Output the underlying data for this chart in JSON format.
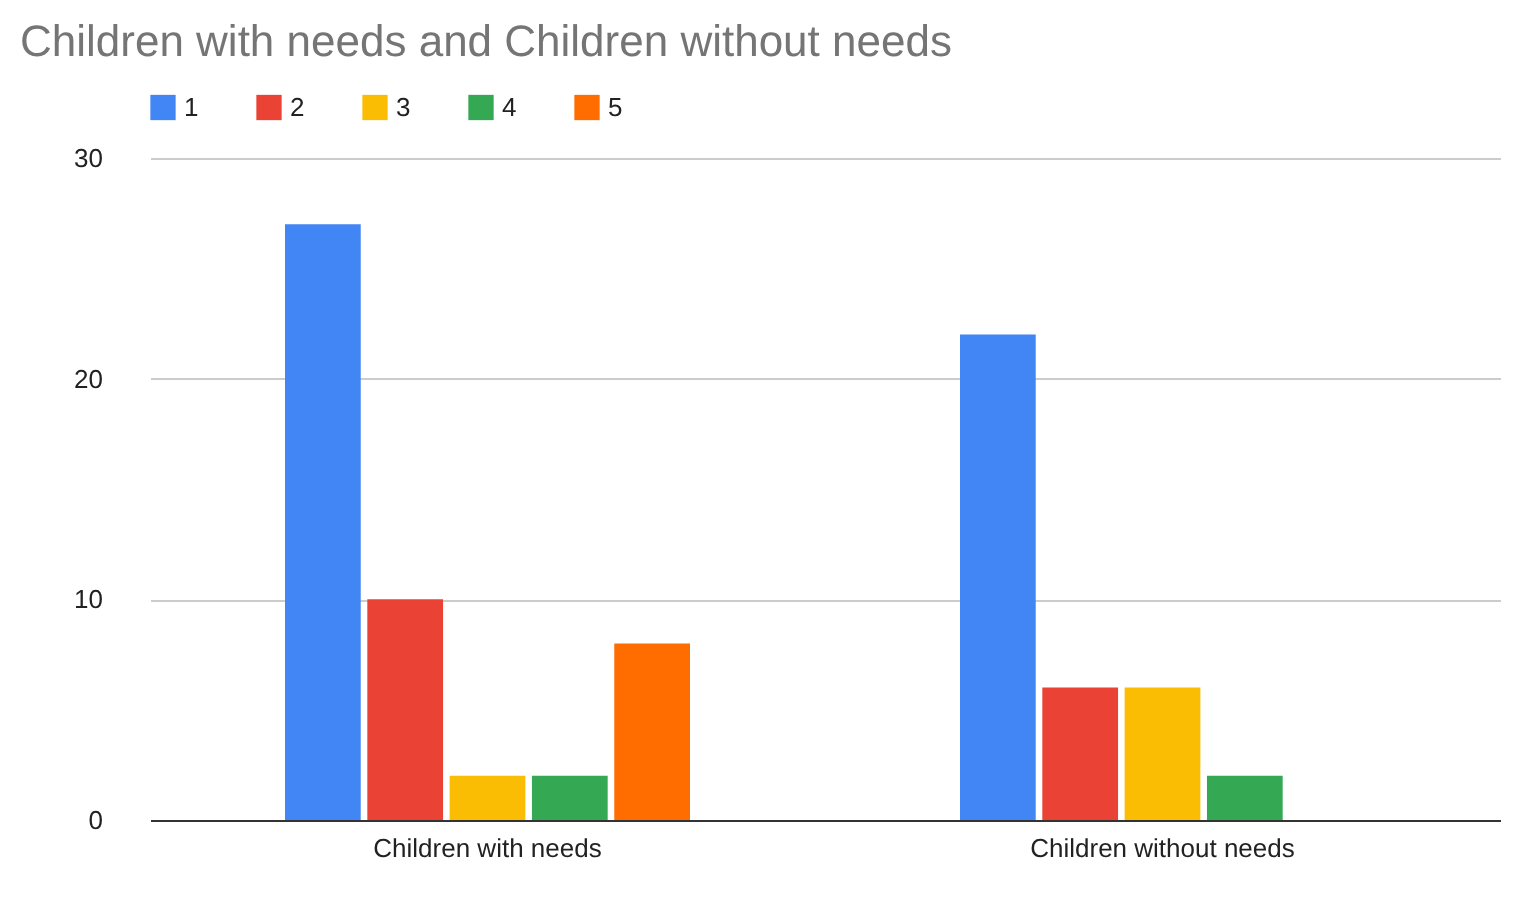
{
  "chart_data": {
    "type": "bar",
    "title": "Children with needs and Children without needs",
    "categories": [
      "Children with needs",
      "Children without needs"
    ],
    "series": [
      {
        "name": "1",
        "color": "#4285f4",
        "values": [
          27,
          22
        ]
      },
      {
        "name": "2",
        "color": "#ea4335",
        "values": [
          10,
          6
        ]
      },
      {
        "name": "3",
        "color": "#fbbc04",
        "values": [
          2,
          6
        ]
      },
      {
        "name": "4",
        "color": "#34a853",
        "values": [
          2,
          2
        ]
      },
      {
        "name": "5",
        "color": "#ff6d01",
        "values": [
          8,
          0
        ]
      }
    ],
    "ylim": [
      0,
      30
    ],
    "yticks": [
      0,
      10,
      20,
      30
    ],
    "grid": "y",
    "legend": "top"
  }
}
